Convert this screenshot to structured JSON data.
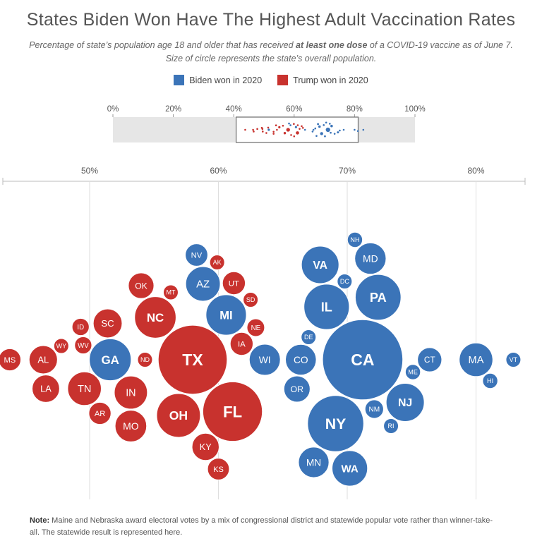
{
  "header": {
    "title": "States Biden Won Have The Highest Adult Vaccination Rates",
    "subtitle_pre": "Percentage of state’s population age 18 and older that has received ",
    "subtitle_bold": "at least one dose",
    "subtitle_post": " of a COVID-19 vaccine as of June 7. Size of circle represents the state’s overall population."
  },
  "legend": [
    {
      "label": "Biden won in 2020",
      "color": "#3b74b8"
    },
    {
      "label": "Trump won in 2020",
      "color": "#c8322e"
    }
  ],
  "note": {
    "label": "Note:",
    "text": " Maine and Nebraska award electoral votes by a mix of congressional district and statewide popular vote rather than winner-take-all. The statewide result is represented here."
  },
  "colors": {
    "biden": "#3b74b8",
    "trump": "#c8322e"
  },
  "chart_data": {
    "type": "scatter",
    "mini_axis": {
      "ticks": [
        "0%",
        "20%",
        "40%",
        "60%",
        "80%",
        "100%"
      ],
      "xlim": [
        0,
        100
      ],
      "zoom_window": [
        40.8,
        81.2
      ]
    },
    "main_axis": {
      "ticks": [
        "50%",
        "60%",
        "70%",
        "80%"
      ],
      "tick_values": [
        50,
        60,
        70,
        80
      ]
    },
    "series": [
      {
        "name": "Biden won in 2020",
        "points": [
          {
            "state": "WA",
            "x": 70.2,
            "pop": 7.7
          },
          {
            "state": "MD",
            "x": 71.8,
            "pop": 6.0
          },
          {
            "state": "NY",
            "x": 69.1,
            "pop": 19.3
          },
          {
            "state": "PA",
            "x": 72.4,
            "pop": 12.8
          },
          {
            "state": "OR",
            "x": 66.1,
            "pop": 4.2
          },
          {
            "state": "DC",
            "x": 69.8,
            "pop": 0.7
          },
          {
            "state": "MN",
            "x": 67.4,
            "pop": 5.7
          },
          {
            "state": "NJ",
            "x": 74.5,
            "pop": 8.9
          },
          {
            "state": "DE",
            "x": 67.0,
            "pop": 1.0
          },
          {
            "state": "CA",
            "x": 71.2,
            "pop": 39.4
          },
          {
            "state": "CT",
            "x": 76.4,
            "pop": 3.6
          },
          {
            "state": "CO",
            "x": 66.4,
            "pop": 5.8
          },
          {
            "state": "ME",
            "x": 75.1,
            "pop": 1.4
          },
          {
            "state": "VA",
            "x": 67.9,
            "pop": 8.6
          },
          {
            "state": "RI",
            "x": 73.4,
            "pop": 1.1
          },
          {
            "state": "NH",
            "x": 70.6,
            "pop": 1.4
          },
          {
            "state": "NM",
            "x": 72.1,
            "pop": 2.1
          },
          {
            "state": "IL",
            "x": 68.4,
            "pop": 12.6
          },
          {
            "state": "MA",
            "x": 80.0,
            "pop": 6.9
          },
          {
            "state": "HI",
            "x": 81.1,
            "pop": 1.4
          },
          {
            "state": "VT",
            "x": 82.9,
            "pop": 0.6
          },
          {
            "state": "AZ",
            "x": 58.8,
            "pop": 7.3
          },
          {
            "state": "GA",
            "x": 51.6,
            "pop": 10.7
          },
          {
            "state": "NV",
            "x": 58.3,
            "pop": 3.1
          },
          {
            "state": "WI",
            "x": 63.6,
            "pop": 5.9
          },
          {
            "state": "MI",
            "x": 60.6,
            "pop": 10.0
          }
        ]
      },
      {
        "name": "Trump won in 2020",
        "points": [
          {
            "state": "KY",
            "x": 59.0,
            "pop": 4.5
          },
          {
            "state": "MT",
            "x": 56.3,
            "pop": 1.1
          },
          {
            "state": "OK",
            "x": 54.0,
            "pop": 4.0
          },
          {
            "state": "OH",
            "x": 56.9,
            "pop": 11.7
          },
          {
            "state": "FL",
            "x": 61.1,
            "pop": 21.7
          },
          {
            "state": "AR",
            "x": 50.8,
            "pop": 3.0
          },
          {
            "state": "IN",
            "x": 53.2,
            "pop": 6.7
          },
          {
            "state": "WV",
            "x": 49.5,
            "pop": 1.8
          },
          {
            "state": "LA",
            "x": 46.6,
            "pop": 4.6
          },
          {
            "state": "NC",
            "x": 55.1,
            "pop": 10.5
          },
          {
            "state": "MS",
            "x": 43.8,
            "pop": 3.0
          },
          {
            "state": "WY",
            "x": 47.8,
            "pop": 0.6
          },
          {
            "state": "ID",
            "x": 49.3,
            "pop": 1.8
          },
          {
            "state": "AK",
            "x": 59.9,
            "pop": 0.7
          },
          {
            "state": "SD",
            "x": 62.5,
            "pop": 0.9
          },
          {
            "state": "AL",
            "x": 46.4,
            "pop": 4.9
          },
          {
            "state": "UT",
            "x": 61.2,
            "pop": 3.2
          },
          {
            "state": "NE",
            "x": 62.9,
            "pop": 1.9
          },
          {
            "state": "TN",
            "x": 49.6,
            "pop": 6.9
          },
          {
            "state": "MO",
            "x": 53.2,
            "pop": 6.1
          },
          {
            "state": "TX",
            "x": 58.0,
            "pop": 29.1
          },
          {
            "state": "IA",
            "x": 61.8,
            "pop": 3.2
          },
          {
            "state": "SC",
            "x": 51.4,
            "pop": 5.1
          },
          {
            "state": "ND",
            "x": 54.3,
            "pop": 0.8
          },
          {
            "state": "KS",
            "x": 60.0,
            "pop": 2.9
          }
        ]
      }
    ]
  }
}
